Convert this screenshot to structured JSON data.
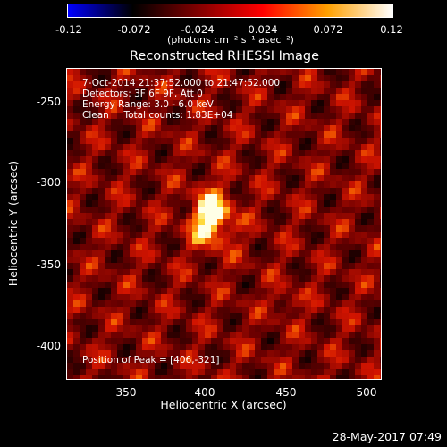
{
  "colorbar": {
    "ticks": [
      "-0.12",
      "-0.072",
      "-0.024",
      "0.024",
      "0.072",
      "0.12"
    ],
    "unit_label": "(photons cm⁻² s⁻¹ asec⁻²)",
    "range": [
      -0.12,
      0.12
    ],
    "colors": [
      "#0000ff",
      "#000000",
      "#800000",
      "#ff0000",
      "#ffa000",
      "#ffffff"
    ]
  },
  "title": "Reconstructed RHESSI Image",
  "annotations": {
    "time": "7-Oct-2014 21:37:52.000 to 21:47:52.000",
    "detectors": "Detectors: 3F 6F 9F, Att 0",
    "energy": "Energy Range: 3.0 - 6.0 keV",
    "clean": "Clean     Total counts: 1.83E+04",
    "peak": "Position of Peak = [406,-321]"
  },
  "axes": {
    "x_title": "Heliocentric X (arcsec)",
    "y_title": "Heliocentric Y (arcsec)",
    "x_ticks": [
      "350",
      "400",
      "450",
      "500"
    ],
    "y_ticks": [
      "-250",
      "-300",
      "-350",
      "-400"
    ]
  },
  "timestamp": "28-May-2017 07:49"
}
